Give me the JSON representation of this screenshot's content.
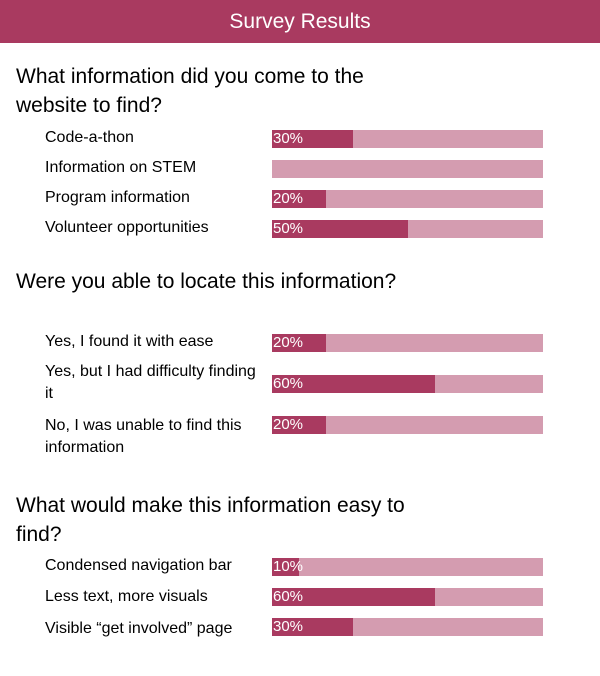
{
  "header": {
    "title": "Survey Results"
  },
  "colors": {
    "accent": "#a93a60",
    "track": "#d49cb0"
  },
  "questions": [
    {
      "text": "What information did you come to the website to find?",
      "options": [
        {
          "label": "Code-a-thon",
          "value": 30,
          "pct": "30%"
        },
        {
          "label": "Information on STEM",
          "value": 0,
          "pct": ""
        },
        {
          "label": "Program information",
          "value": 20,
          "pct": "20%"
        },
        {
          "label": "Volunteer opportunities",
          "value": 50,
          "pct": "50%"
        }
      ]
    },
    {
      "text": "Were you able to locate this information?",
      "options": [
        {
          "label": "Yes, I found it with ease",
          "value": 20,
          "pct": "20%"
        },
        {
          "label": "Yes, but I had difficulty finding it",
          "value": 60,
          "pct": "60%"
        },
        {
          "label": "No, I was unable to find this information",
          "value": 20,
          "pct": "20%"
        }
      ]
    },
    {
      "text": "What would make this information easy to find?",
      "options": [
        {
          "label": "Condensed navigation bar",
          "value": 10,
          "pct": "10%"
        },
        {
          "label": "Less text, more visuals",
          "value": 60,
          "pct": "60%"
        },
        {
          "label": "Visible “get involved” page",
          "value": 30,
          "pct": "30%"
        }
      ]
    }
  ]
}
